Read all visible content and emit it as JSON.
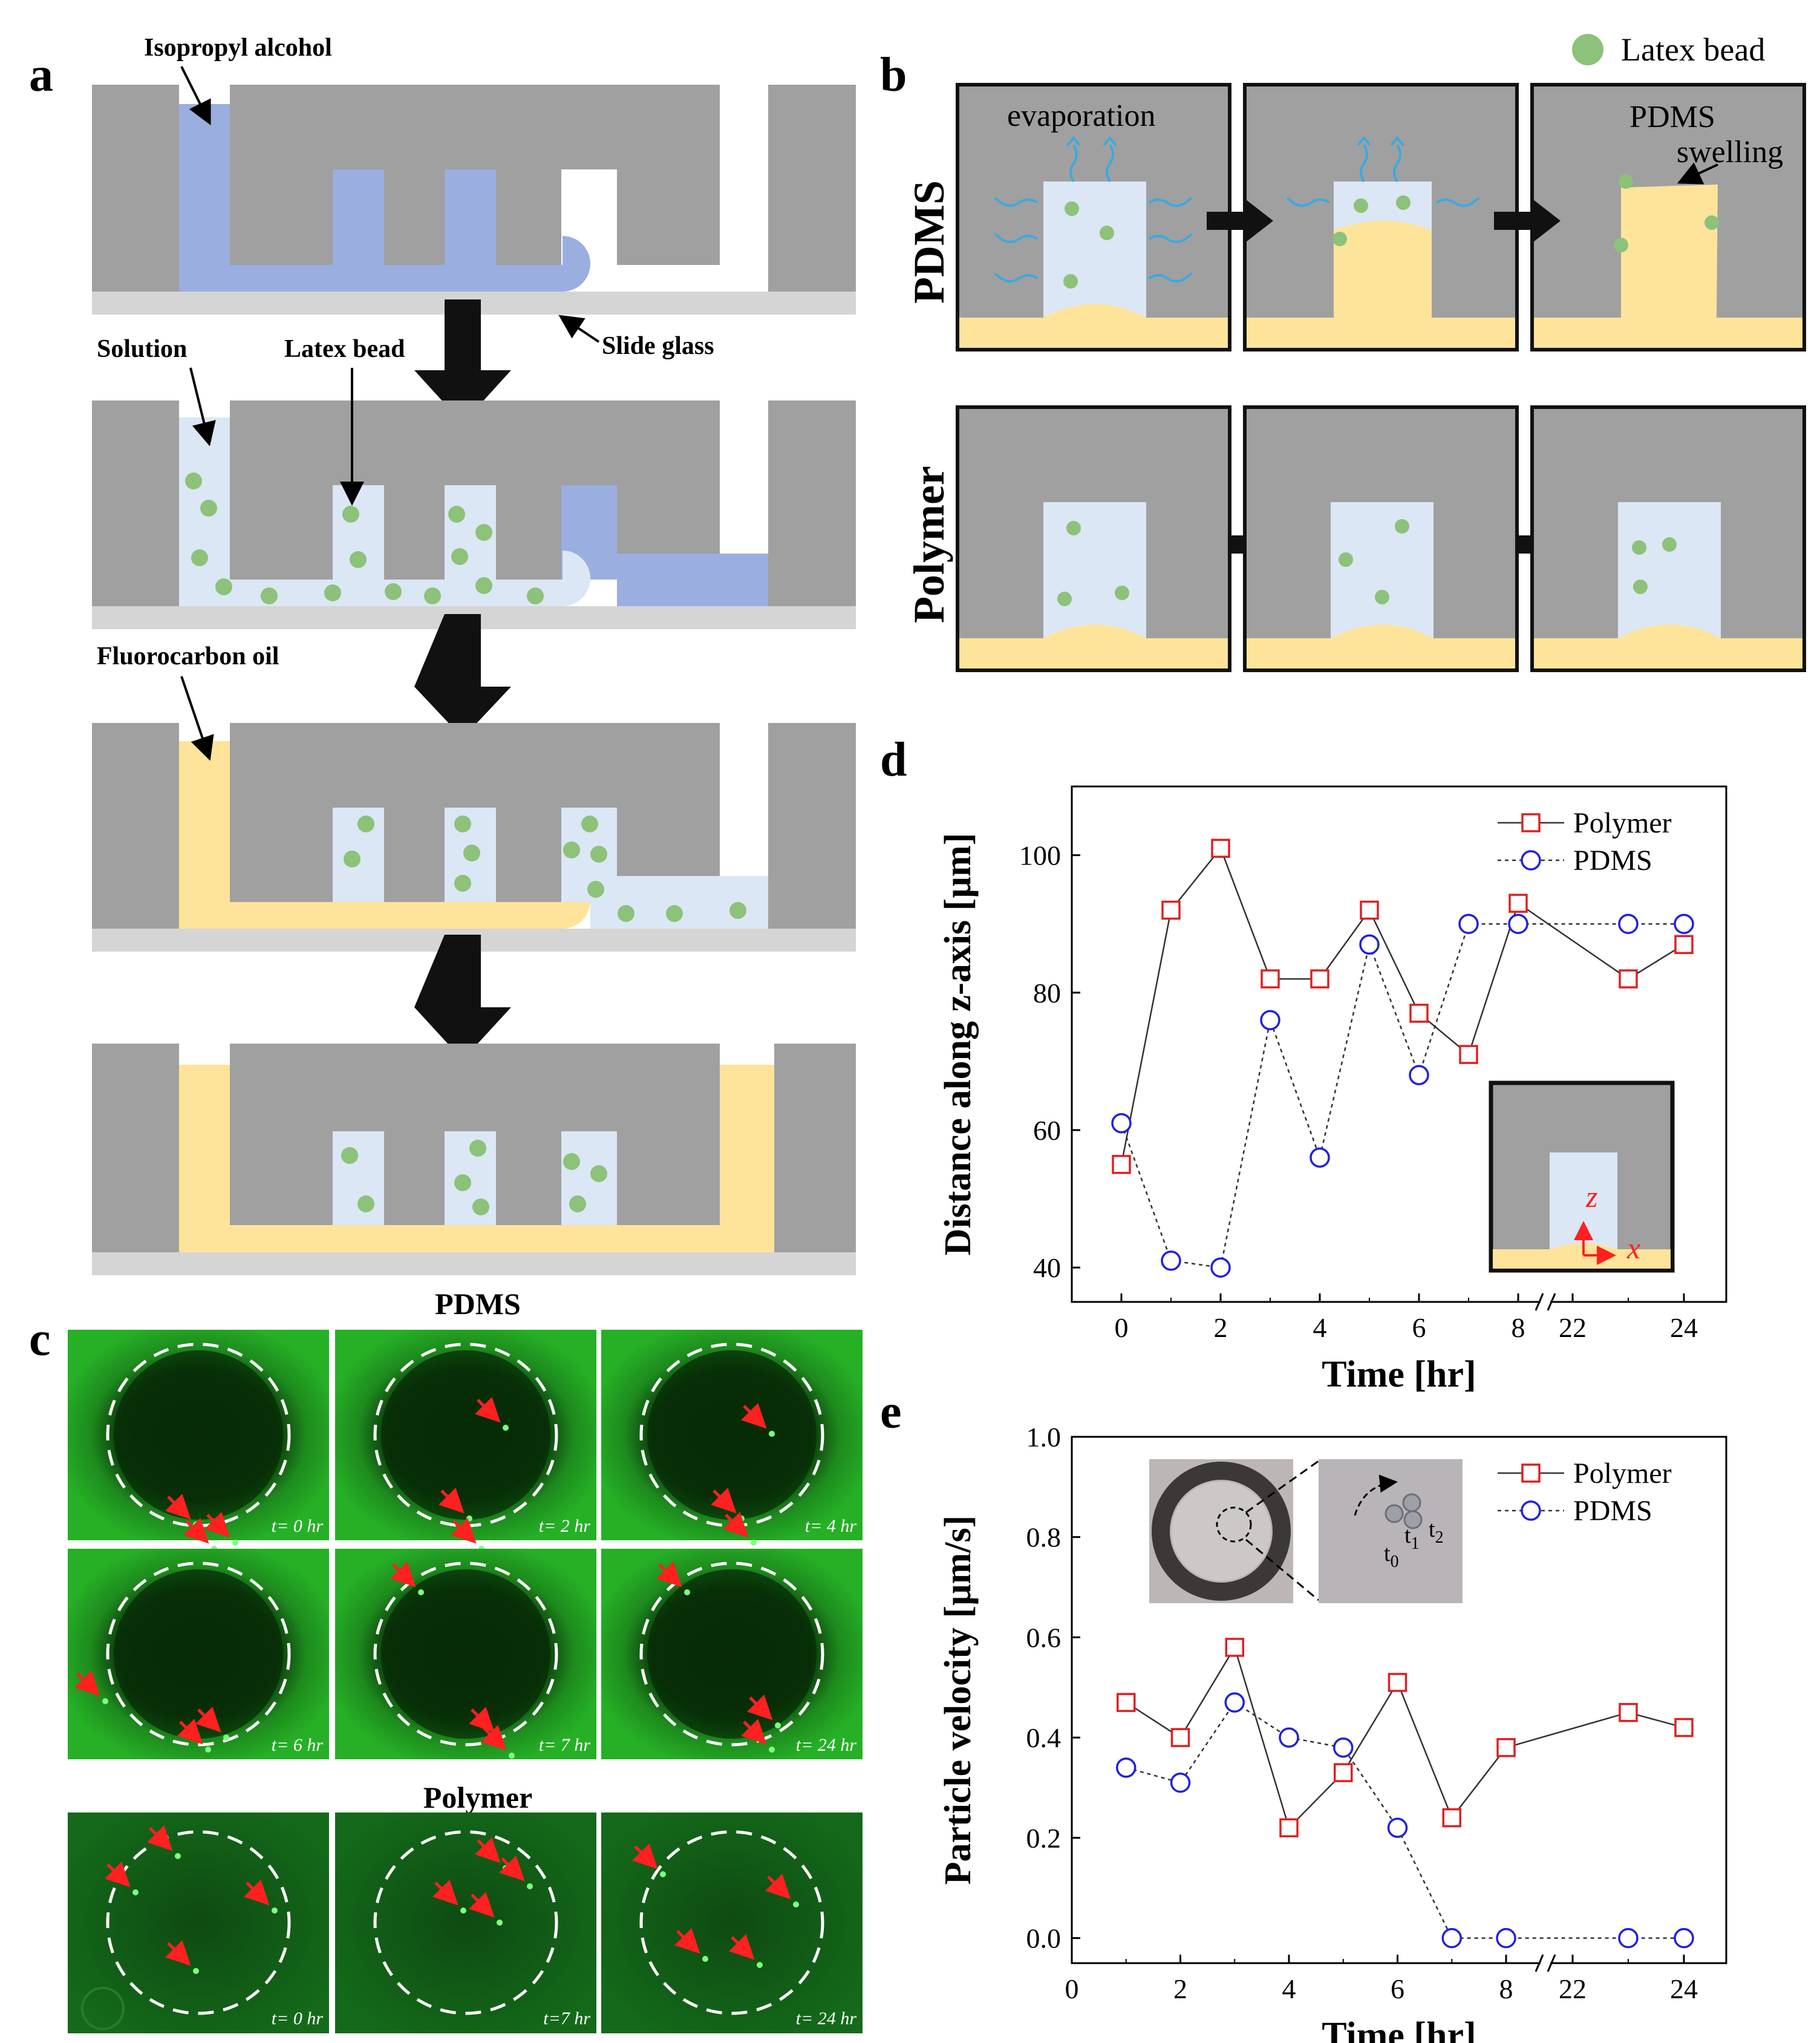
{
  "panel_a": {
    "label": "a",
    "isopropyl_label": "Isopropyl alcohol",
    "slide_glass_label": "Slide glass",
    "solution_label": "Solution",
    "latex_bead_label": "Latex bead",
    "fluorocarbon_label": "Fluorocarbon oil"
  },
  "panel_b": {
    "label": "b",
    "legend_label": "Latex bead",
    "row1_label": "PDMS",
    "row2_label": "Polymer",
    "evaporation_label": "evaporation",
    "swelling_line1": "PDMS",
    "swelling_line2": "swelling"
  },
  "panel_c": {
    "label": "c",
    "pdms_title": "PDMS",
    "polymer_title": "Polymer",
    "pdms_times": [
      "t= 0 hr",
      "t= 2 hr",
      "t= 4 hr",
      "t= 6 hr",
      "t= 7 hr",
      "t= 24 hr"
    ],
    "polymer_times": [
      "t= 0 hr",
      "t=7 hr",
      "t= 24 hr"
    ]
  },
  "panel_d": {
    "label": "d",
    "inset_z": "z",
    "inset_x": "x"
  },
  "panel_e": {
    "label": "e",
    "inset_t0": "t",
    "inset_t1": "t",
    "inset_t2": "t",
    "sub0": "0",
    "sub1": "1",
    "sub2": "2"
  },
  "colors": {
    "pdms_gray": "#a0a0a0",
    "glass": "#d5d5d5",
    "ipa_blue": "#9aaee0",
    "solution_blue": "#dbe7f4",
    "oil_yellow": "#fde49a",
    "bead_green": "#8cc27a",
    "polymer_red": "#e02020",
    "pdms_blue": "#2020e0"
  },
  "chart_data": [
    {
      "type": "line",
      "id": "d",
      "xlabel": "Time [hr]",
      "ylabel": "Distance along z-axis [µm]",
      "xticks": [
        "0",
        "2",
        "4",
        "6",
        "8",
        "22",
        "24"
      ],
      "yticks": [
        "40",
        "60",
        "80",
        "100"
      ],
      "ylim": [
        35,
        110
      ],
      "x_break": "between 8 and 22",
      "legend_position": "top-right",
      "series": [
        {
          "name": "Polymer",
          "marker": "square",
          "line": "solid",
          "x": [
            0,
            1,
            2,
            3,
            4,
            5,
            6,
            7,
            8,
            23,
            24
          ],
          "y": [
            55,
            92,
            101,
            82,
            82,
            92,
            77,
            71,
            93,
            82,
            87
          ]
        },
        {
          "name": "PDMS",
          "marker": "circle",
          "line": "dotted",
          "x": [
            0,
            1,
            2,
            3,
            4,
            5,
            6,
            7,
            8,
            23,
            24
          ],
          "y": [
            61,
            41,
            40,
            76,
            56,
            87,
            68,
            90,
            90,
            90,
            90
          ]
        }
      ]
    },
    {
      "type": "line",
      "id": "e",
      "xlabel": "Time [hr]",
      "ylabel": "Particle velocity [µm/s]",
      "xticks": [
        "0",
        "2",
        "4",
        "6",
        "8",
        "22",
        "24"
      ],
      "yticks": [
        "0.0",
        "0.2",
        "0.4",
        "0.6",
        "0.8",
        "1.0"
      ],
      "ylim": [
        -0.05,
        1.0
      ],
      "x_break": "between 8 and 22",
      "legend_position": "top-right",
      "series": [
        {
          "name": "Polymer",
          "marker": "square",
          "line": "solid",
          "x": [
            1,
            2,
            3,
            4,
            5,
            6,
            7,
            8,
            23,
            24
          ],
          "y": [
            0.47,
            0.4,
            0.58,
            0.22,
            0.33,
            0.51,
            0.24,
            0.38,
            0.45,
            0.42
          ]
        },
        {
          "name": "PDMS",
          "marker": "circle",
          "line": "dotted",
          "x": [
            1,
            2,
            3,
            4,
            5,
            6,
            7,
            8,
            23,
            24
          ],
          "y": [
            0.34,
            0.31,
            0.47,
            0.4,
            0.38,
            0.22,
            0.0,
            0.0,
            0.0,
            0.0
          ]
        }
      ]
    }
  ]
}
